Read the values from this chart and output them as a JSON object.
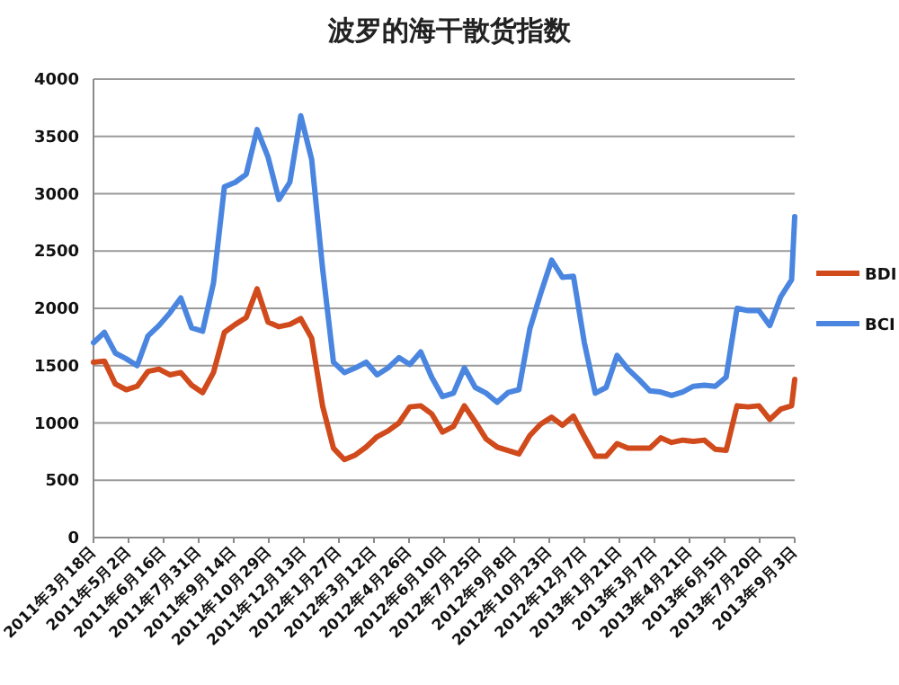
{
  "chart_data": {
    "type": "line",
    "title": "波罗的海干散货指数",
    "x": [
      "2011-03-18",
      "2011-04-01",
      "2011-04-15",
      "2011-04-29",
      "2011-05-13",
      "2011-05-27",
      "2011-06-10",
      "2011-06-24",
      "2011-07-08",
      "2011-07-22",
      "2011-08-05",
      "2011-08-19",
      "2011-09-02",
      "2011-09-16",
      "2011-09-30",
      "2011-10-14",
      "2011-10-28",
      "2011-11-11",
      "2011-11-25",
      "2011-12-09",
      "2011-12-23",
      "2012-01-06",
      "2012-01-20",
      "2012-02-03",
      "2012-02-17",
      "2012-03-02",
      "2012-03-16",
      "2012-03-30",
      "2012-04-13",
      "2012-04-27",
      "2012-05-11",
      "2012-05-25",
      "2012-06-08",
      "2012-06-22",
      "2012-07-06",
      "2012-07-20",
      "2012-08-03",
      "2012-08-17",
      "2012-08-31",
      "2012-09-14",
      "2012-09-28",
      "2012-10-12",
      "2012-10-26",
      "2012-11-09",
      "2012-11-23",
      "2012-12-07",
      "2012-12-21",
      "2013-01-04",
      "2013-01-18",
      "2013-02-01",
      "2013-02-15",
      "2013-03-01",
      "2013-03-15",
      "2013-03-29",
      "2013-04-12",
      "2013-04-26",
      "2013-05-10",
      "2013-05-24",
      "2013-06-07",
      "2013-06-21",
      "2013-07-05",
      "2013-07-19",
      "2013-08-02",
      "2013-08-16",
      "2013-08-30",
      "2013-09-03"
    ],
    "series": [
      {
        "name": "BDI",
        "color": "#d04a1c",
        "values": [
          1530,
          1540,
          1340,
          1290,
          1320,
          1450,
          1470,
          1420,
          1440,
          1330,
          1265,
          1440,
          1790,
          1860,
          1920,
          2170,
          1880,
          1840,
          1860,
          1910,
          1740,
          1150,
          780,
          680,
          720,
          790,
          880,
          930,
          1000,
          1140,
          1150,
          1080,
          920,
          970,
          1150,
          1010,
          860,
          790,
          760,
          730,
          890,
          990,
          1050,
          980,
          1060,
          880,
          710,
          710,
          820,
          780,
          780,
          780,
          870,
          830,
          850,
          840,
          850,
          770,
          760,
          1150,
          1140,
          1150,
          1030,
          1120,
          1150,
          1380
        ]
      },
      {
        "name": "BCI",
        "color": "#4a86e0",
        "values": [
          1700,
          1790,
          1610,
          1560,
          1500,
          1760,
          1850,
          1960,
          2090,
          1830,
          1800,
          2220,
          3060,
          3100,
          3170,
          3560,
          3320,
          2950,
          3100,
          3680,
          3300,
          2350,
          1530,
          1440,
          1480,
          1530,
          1420,
          1480,
          1570,
          1510,
          1620,
          1400,
          1230,
          1260,
          1480,
          1310,
          1260,
          1180,
          1265,
          1290,
          1820,
          2130,
          2420,
          2270,
          2280,
          1700,
          1260,
          1310,
          1590,
          1470,
          1380,
          1280,
          1270,
          1240,
          1270,
          1320,
          1330,
          1320,
          1400,
          2000,
          1980,
          1980,
          1850,
          2100,
          2250,
          2800
        ]
      }
    ],
    "xlim": [
      "2011-03-18",
      "2013-09-03"
    ],
    "xticks": [
      {
        "value": "2011-03-18",
        "label": "2011年3月18日"
      },
      {
        "value": "2011-05-02",
        "label": "2011年5月2日"
      },
      {
        "value": "2011-06-16",
        "label": "2011年6月16日"
      },
      {
        "value": "2011-07-31",
        "label": "2011年7月31日"
      },
      {
        "value": "2011-09-14",
        "label": "2011年9月14日"
      },
      {
        "value": "2011-10-29",
        "label": "2011年10月29日"
      },
      {
        "value": "2011-12-13",
        "label": "2011年12月13日"
      },
      {
        "value": "2012-01-27",
        "label": "2012年1月27日"
      },
      {
        "value": "2012-03-12",
        "label": "2012年3月12日"
      },
      {
        "value": "2012-04-26",
        "label": "2012年4月26日"
      },
      {
        "value": "2012-06-10",
        "label": "2012年6月10日"
      },
      {
        "value": "2012-07-25",
        "label": "2012年7月25日"
      },
      {
        "value": "2012-09-08",
        "label": "2012年9月8日"
      },
      {
        "value": "2012-10-23",
        "label": "2012年10月23日"
      },
      {
        "value": "2012-12-07",
        "label": "2012年12月7日"
      },
      {
        "value": "2013-01-21",
        "label": "2013年1月21日"
      },
      {
        "value": "2013-03-07",
        "label": "2013年3月7日"
      },
      {
        "value": "2013-04-21",
        "label": "2013年4月21日"
      },
      {
        "value": "2013-06-05",
        "label": "2013年6月5日"
      },
      {
        "value": "2013-07-20",
        "label": "2013年7月20日"
      },
      {
        "value": "2013-09-03",
        "label": "2013年9月3日"
      }
    ],
    "ylim": [
      0,
      4000
    ],
    "yticks": [
      0,
      500,
      1000,
      1500,
      2000,
      2500,
      3000,
      3500,
      4000
    ],
    "grid": "y",
    "legend": "right",
    "marker": "none",
    "line_style": "solid"
  }
}
